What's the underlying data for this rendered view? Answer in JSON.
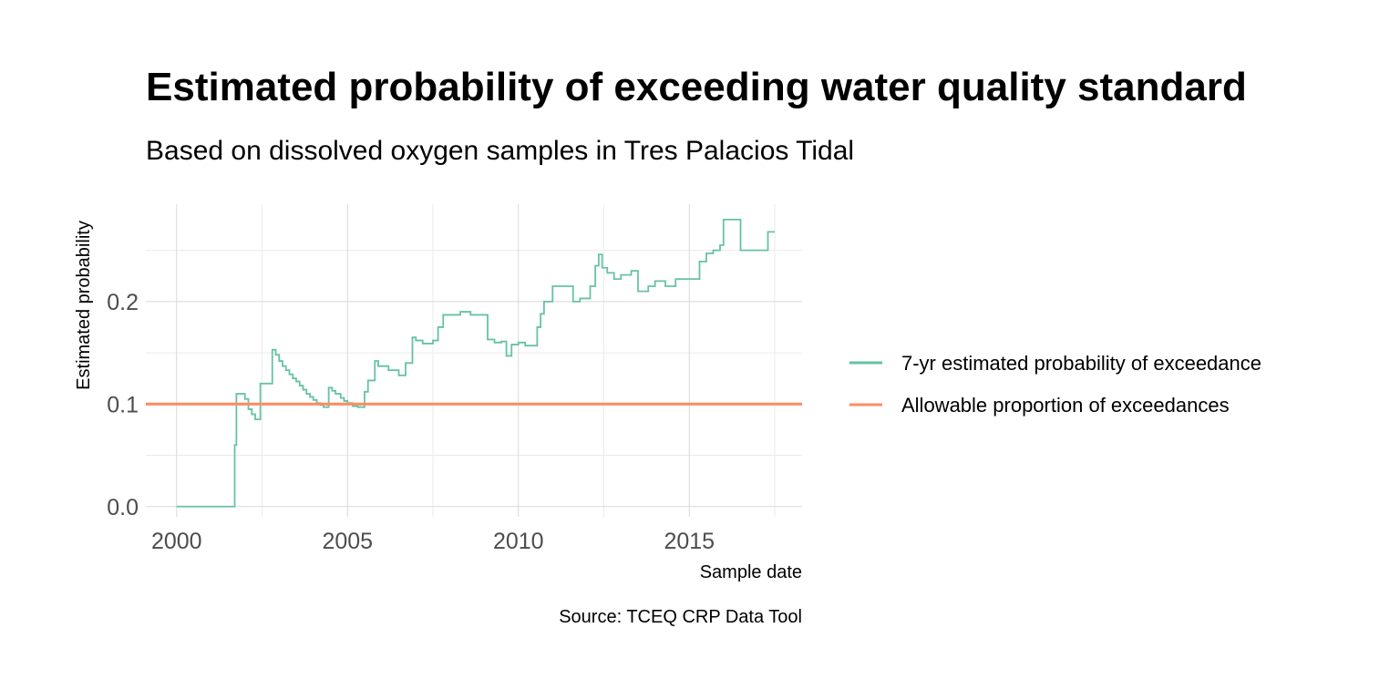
{
  "chart_data": {
    "type": "line",
    "title": "Estimated probability of exceeding water quality standard",
    "subtitle": "Based on dissolved oxygen samples in Tres Palacios Tidal",
    "xlabel": "Sample date",
    "ylabel": "Estimated probability",
    "caption": "Source: TCEQ CRP Data Tool",
    "xlim": [
      1999.1,
      2018.3
    ],
    "ylim": [
      -0.01,
      0.295
    ],
    "x_ticks": [
      2000,
      2005,
      2010,
      2015
    ],
    "x_tick_labels": [
      "2000",
      "2005",
      "2010",
      "2015"
    ],
    "y_ticks": [
      0.0,
      0.1,
      0.2
    ],
    "y_tick_labels": [
      "0.0",
      "0.1",
      "0.2"
    ],
    "grid": true,
    "legend_position": "right",
    "series": [
      {
        "name": "7-yr estimated probability of exceedance",
        "color": "#66c2a5",
        "step": true,
        "x": [
          2000.0,
          2001.7,
          2001.75,
          2001.8,
          2002.0,
          2002.1,
          2002.2,
          2002.3,
          2002.45,
          2002.5,
          2002.8,
          2002.9,
          2003.0,
          2003.1,
          2003.2,
          2003.3,
          2003.4,
          2003.5,
          2003.6,
          2003.7,
          2003.8,
          2003.9,
          2004.0,
          2004.1,
          2004.2,
          2004.3,
          2004.45,
          2004.55,
          2004.65,
          2004.8,
          2004.9,
          2005.0,
          2005.15,
          2005.3,
          2005.5,
          2005.6,
          2005.8,
          2005.9,
          2006.2,
          2006.5,
          2006.7,
          2006.9,
          2007.0,
          2007.2,
          2007.5,
          2007.65,
          2007.8,
          2008.3,
          2008.6,
          2009.1,
          2009.3,
          2009.5,
          2009.65,
          2009.8,
          2010.0,
          2010.2,
          2010.4,
          2010.55,
          2010.65,
          2010.75,
          2011.0,
          2011.6,
          2011.8,
          2012.1,
          2012.25,
          2012.35,
          2012.45,
          2012.6,
          2012.8,
          2013.0,
          2013.3,
          2013.5,
          2013.8,
          2014.0,
          2014.3,
          2014.6,
          2015.3,
          2015.5,
          2015.7,
          2015.9,
          2016.0,
          2016.2,
          2016.5,
          2016.6,
          2017.2,
          2017.3,
          2017.5
        ],
        "values": [
          0.0,
          0.06,
          0.11,
          0.11,
          0.105,
          0.095,
          0.09,
          0.085,
          0.12,
          0.12,
          0.153,
          0.148,
          0.142,
          0.137,
          0.133,
          0.129,
          0.125,
          0.122,
          0.118,
          0.114,
          0.11,
          0.107,
          0.104,
          0.101,
          0.099,
          0.097,
          0.116,
          0.113,
          0.11,
          0.106,
          0.103,
          0.101,
          0.098,
          0.097,
          0.112,
          0.123,
          0.142,
          0.137,
          0.133,
          0.128,
          0.14,
          0.165,
          0.162,
          0.159,
          0.162,
          0.175,
          0.187,
          0.19,
          0.187,
          0.163,
          0.16,
          0.161,
          0.147,
          0.158,
          0.16,
          0.157,
          0.157,
          0.175,
          0.188,
          0.2,
          0.215,
          0.2,
          0.203,
          0.215,
          0.235,
          0.246,
          0.233,
          0.228,
          0.222,
          0.226,
          0.23,
          0.21,
          0.215,
          0.22,
          0.215,
          0.222,
          0.239,
          0.247,
          0.25,
          0.255,
          0.28,
          0.28,
          0.25,
          0.25,
          0.25,
          0.268,
          0.268
        ]
      },
      {
        "name": "Allowable proportion of exceedances",
        "color": "#fc8d62",
        "step": false,
        "x": [
          1999.1,
          2018.3
        ],
        "values": [
          0.1,
          0.1
        ]
      }
    ]
  }
}
